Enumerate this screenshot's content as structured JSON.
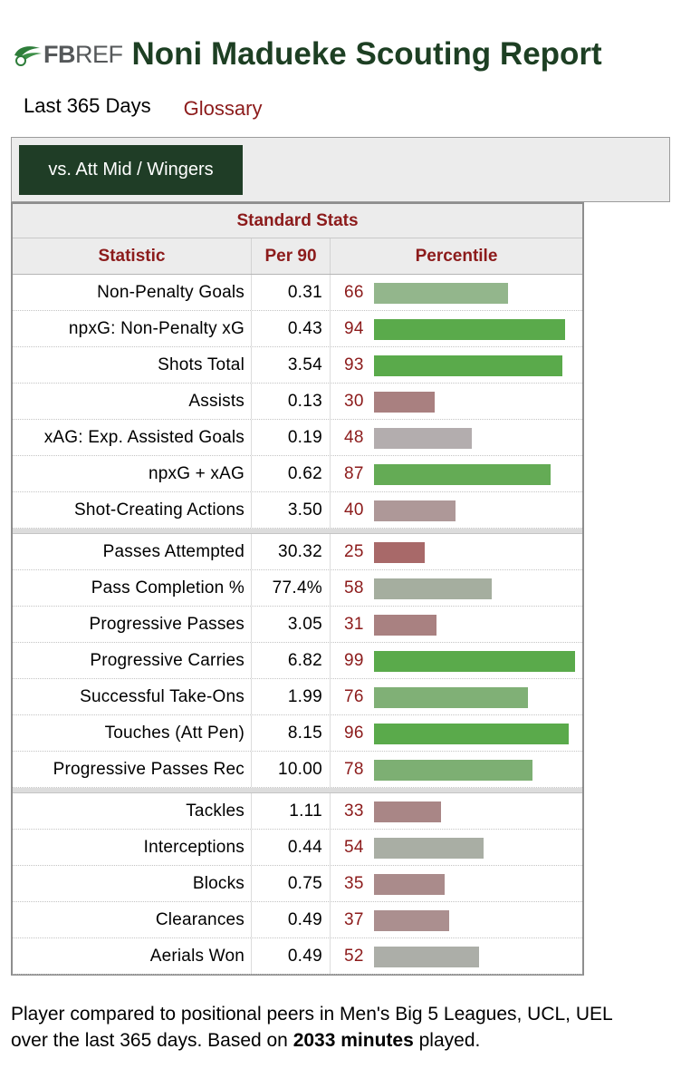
{
  "header": {
    "logo_bold": "FB",
    "logo_light": "REF",
    "title": "Noni Madueke Scouting Report"
  },
  "subnav": {
    "period": "Last 365 Days",
    "glossary": "Glossary"
  },
  "filter": {
    "active_tab": "vs. Att Mid / Wingers"
  },
  "table": {
    "title": "Standard Stats",
    "columns": [
      "Statistic",
      "Per 90",
      "Percentile"
    ],
    "colors": {
      "high": "#5aaa4b",
      "mid_high": "#7fb077",
      "mid_green": "#93b68c",
      "neutral_grey": "#a7ad9f",
      "grey": "#b1acae",
      "mid_red": "#ae9595",
      "low": "#ab6e6e"
    },
    "groups": [
      [
        {
          "stat": "Non-Penalty Goals",
          "per90": "0.31",
          "percentile": "66",
          "pct_value": 66,
          "color": "#93b68c"
        },
        {
          "stat": "npxG: Non-Penalty xG",
          "per90": "0.43",
          "percentile": "94",
          "pct_value": 94,
          "color": "#5aaa4b"
        },
        {
          "stat": "Shots Total",
          "per90": "3.54",
          "percentile": "93",
          "pct_value": 93,
          "color": "#5aaa4b"
        },
        {
          "stat": "Assists",
          "per90": "0.13",
          "percentile": "30",
          "pct_value": 30,
          "color": "#a98080"
        },
        {
          "stat": "xAG: Exp. Assisted Goals",
          "per90": "0.19",
          "percentile": "48",
          "pct_value": 48,
          "color": "#b3adae"
        },
        {
          "stat": "npxG + xAG",
          "per90": "0.62",
          "percentile": "87",
          "pct_value": 87,
          "color": "#64ab55"
        },
        {
          "stat": "Shot-Creating Actions",
          "per90": "3.50",
          "percentile": "40",
          "pct_value": 40,
          "color": "#ae9898"
        }
      ],
      [
        {
          "stat": "Passes Attempted",
          "per90": "30.32",
          "percentile": "25",
          "pct_value": 25,
          "color": "#a86969"
        },
        {
          "stat": "Pass Completion %",
          "per90": "77.4%",
          "percentile": "58",
          "pct_value": 58,
          "color": "#a5ae9f"
        },
        {
          "stat": "Progressive Passes",
          "per90": "3.05",
          "percentile": "31",
          "pct_value": 31,
          "color": "#a98181"
        },
        {
          "stat": "Progressive Carries",
          "per90": "6.82",
          "percentile": "99",
          "pct_value": 99,
          "color": "#5aaa4b"
        },
        {
          "stat": "Successful Take-Ons",
          "per90": "1.99",
          "percentile": "76",
          "pct_value": 76,
          "color": "#80b076"
        },
        {
          "stat": "Touches (Att Pen)",
          "per90": "8.15",
          "percentile": "96",
          "pct_value": 96,
          "color": "#5aaa4b"
        },
        {
          "stat": "Progressive Passes Rec",
          "per90": "10.00",
          "percentile": "78",
          "pct_value": 78,
          "color": "#7daf73"
        }
      ],
      [
        {
          "stat": "Tackles",
          "per90": "1.11",
          "percentile": "33",
          "pct_value": 33,
          "color": "#a98686"
        },
        {
          "stat": "Interceptions",
          "per90": "0.44",
          "percentile": "54",
          "pct_value": 54,
          "color": "#a9aea4"
        },
        {
          "stat": "Blocks",
          "per90": "0.75",
          "percentile": "35",
          "pct_value": 35,
          "color": "#aa8b8b"
        },
        {
          "stat": "Clearances",
          "per90": "0.49",
          "percentile": "37",
          "pct_value": 37,
          "color": "#ab8f8f"
        },
        {
          "stat": "Aerials Won",
          "per90": "0.49",
          "percentile": "52",
          "pct_value": 52,
          "color": "#acaea8"
        }
      ]
    ]
  },
  "footnote": {
    "text_before": "Player compared to positional peers in Men's Big 5 Leagues, UCL, UEL over the last 365 days. Based on ",
    "bold": "2033 minutes",
    "text_after": " played."
  }
}
